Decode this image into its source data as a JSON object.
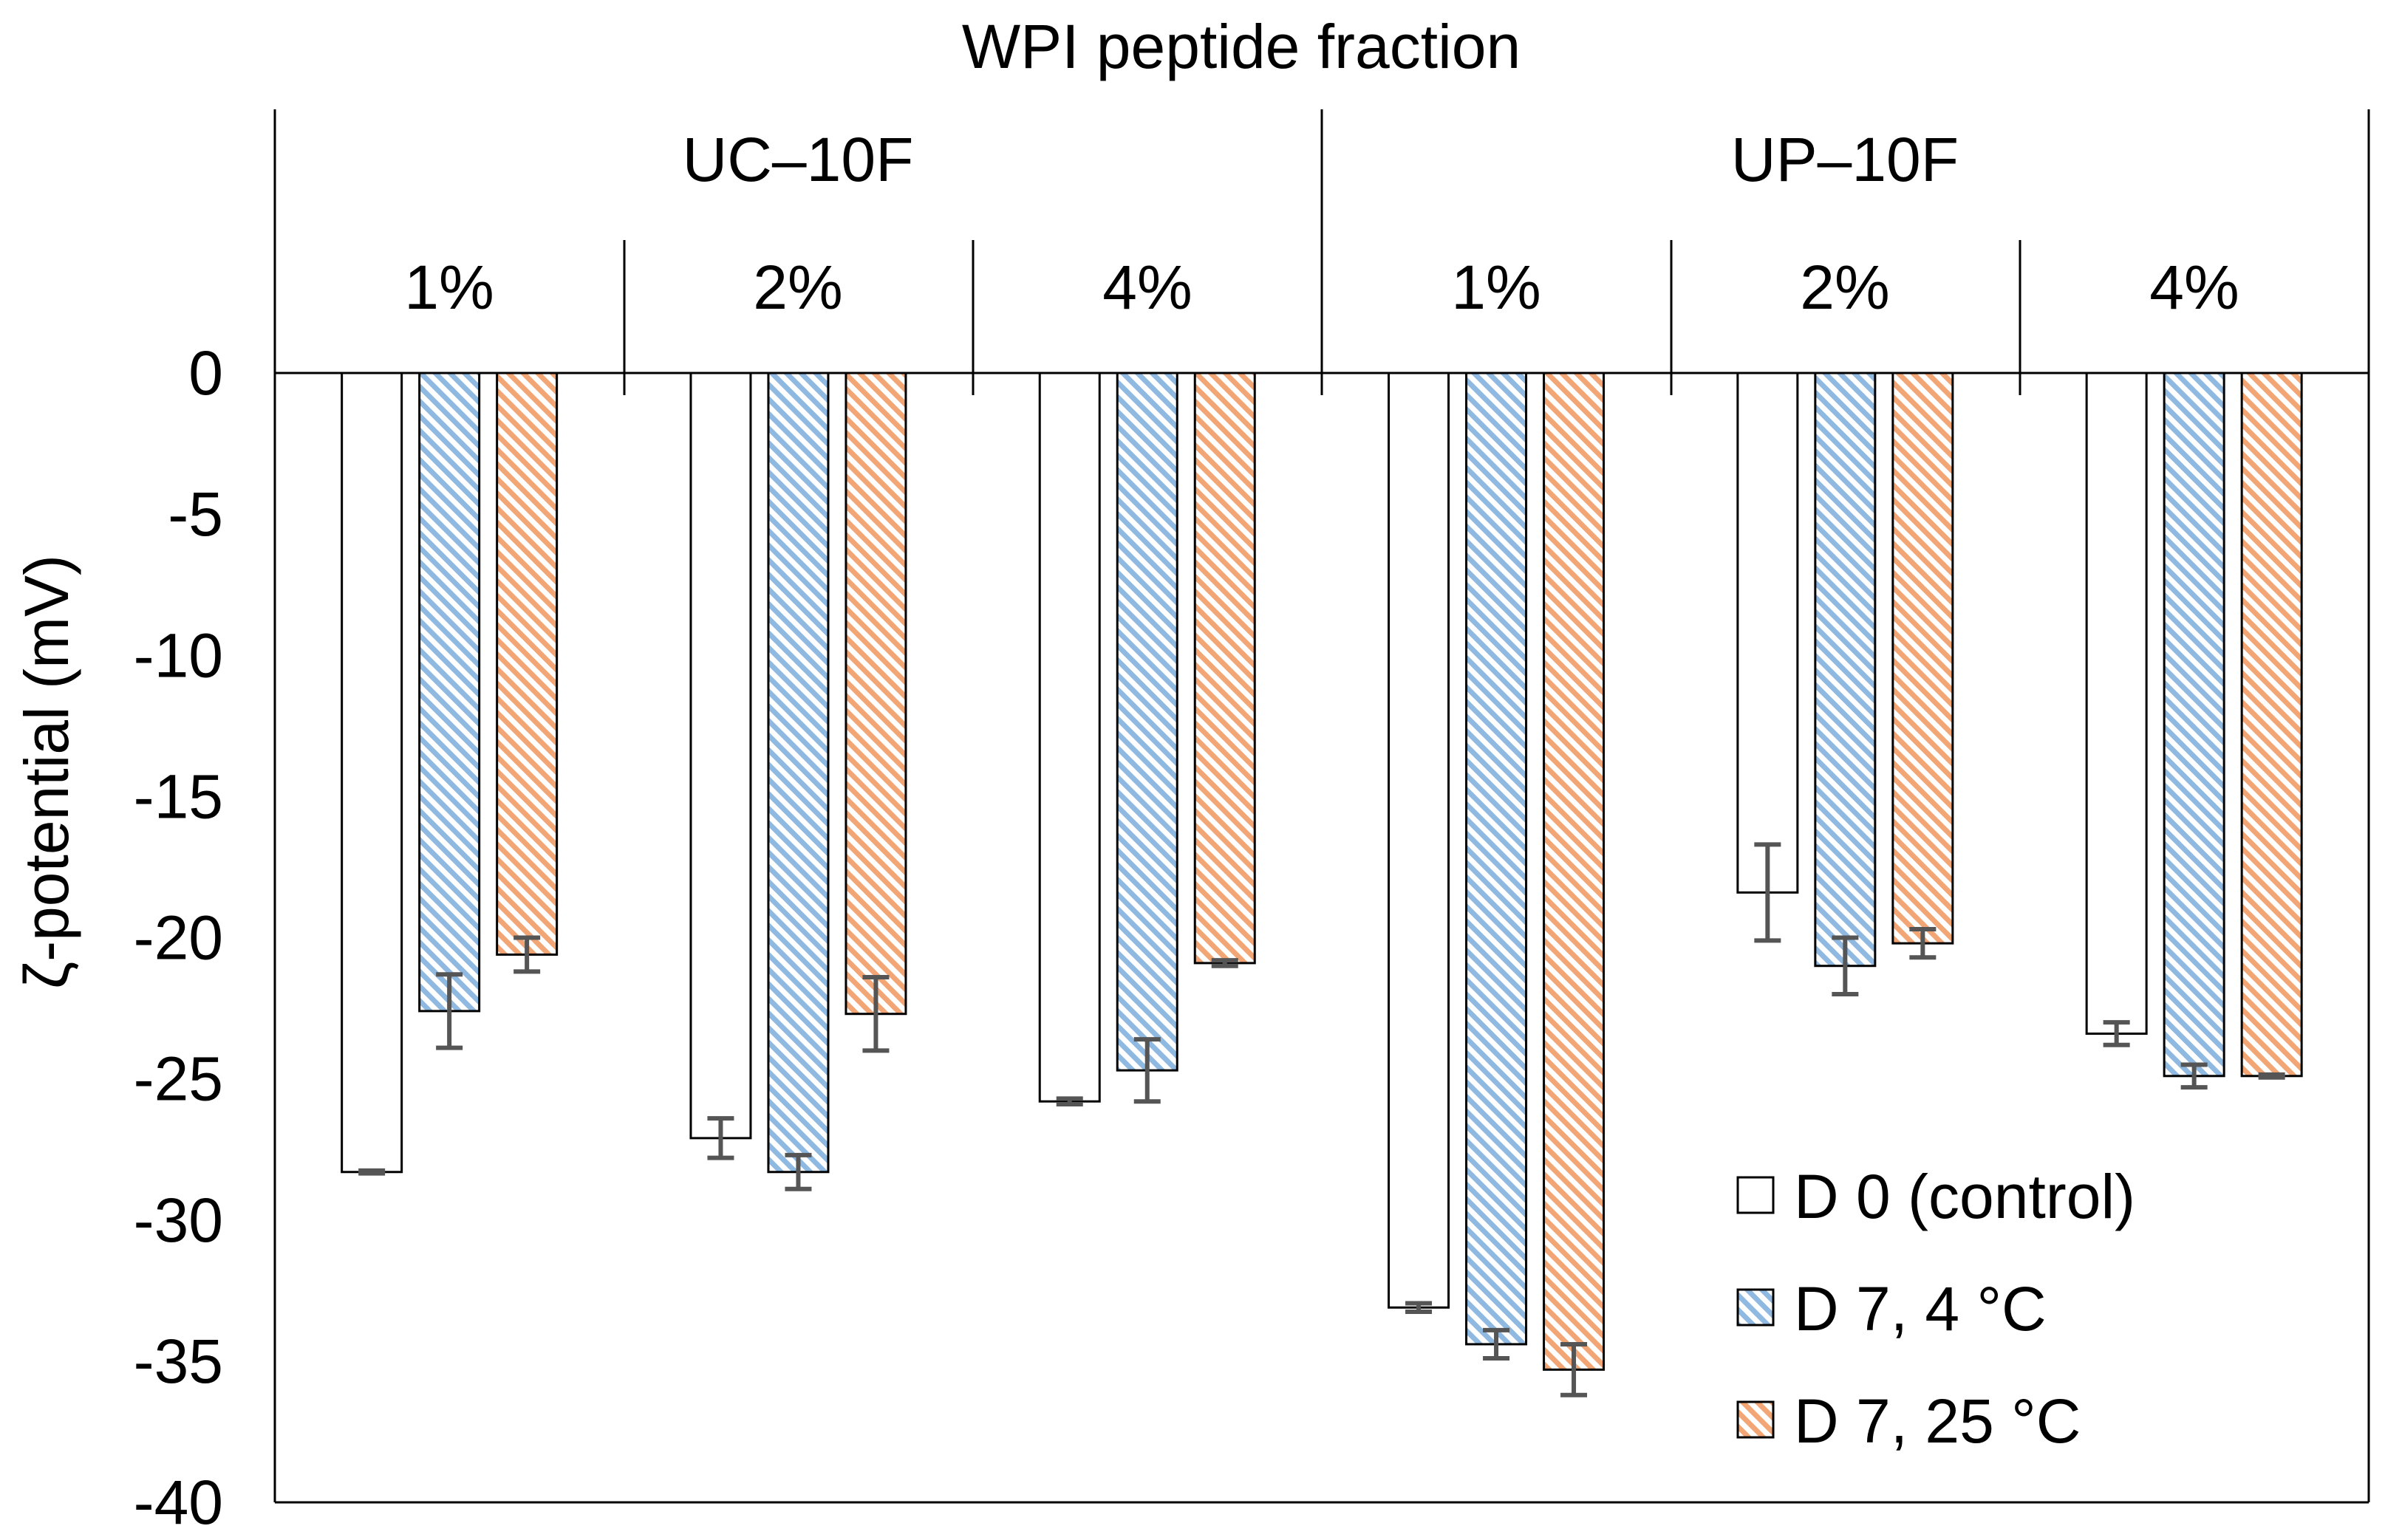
{
  "chart_data": {
    "type": "bar",
    "title": "WPI peptide fraction",
    "ylabel": "ζ-potential (mV)",
    "xlabel": "",
    "ylim": [
      -40,
      0
    ],
    "yticks": [
      0,
      -5,
      -10,
      -15,
      -20,
      -25,
      -30,
      -35,
      -40
    ],
    "grid": false,
    "legend_position": "bottom-right",
    "groups": [
      {
        "name": "UC–10F",
        "concentrations": [
          "1%",
          "2%",
          "4%"
        ]
      },
      {
        "name": "UP–10F",
        "concentrations": [
          "1%",
          "2%",
          "4%"
        ]
      }
    ],
    "categories": [
      "UC–10F 1%",
      "UC–10F 2%",
      "UC–10F 4%",
      "UP–10F 1%",
      "UP–10F 2%",
      "UP–10F 4%"
    ],
    "series": [
      {
        "name": "D 0 (control)",
        "pattern": "none",
        "color": "#ffffff",
        "values": [
          -28.3,
          -27.1,
          -25.8,
          -33.1,
          -18.4,
          -23.4
        ],
        "errors": [
          0.05,
          0.7,
          0.1,
          0.15,
          1.7,
          0.4
        ]
      },
      {
        "name": "D 7, 4 °C",
        "pattern": "diagonal",
        "color": "#9dc3e6",
        "values": [
          -22.6,
          -28.3,
          -24.7,
          -34.4,
          -21.0,
          -24.9
        ],
        "errors": [
          1.3,
          0.6,
          1.1,
          0.5,
          1.0,
          0.4
        ]
      },
      {
        "name": "D 7, 25 °C",
        "pattern": "diagonal",
        "color": "#f4b183",
        "values": [
          -20.6,
          -22.7,
          -20.9,
          -35.3,
          -20.2,
          -24.9
        ],
        "errors": [
          0.6,
          1.3,
          0.1,
          0.9,
          0.5,
          0.05
        ]
      }
    ]
  }
}
